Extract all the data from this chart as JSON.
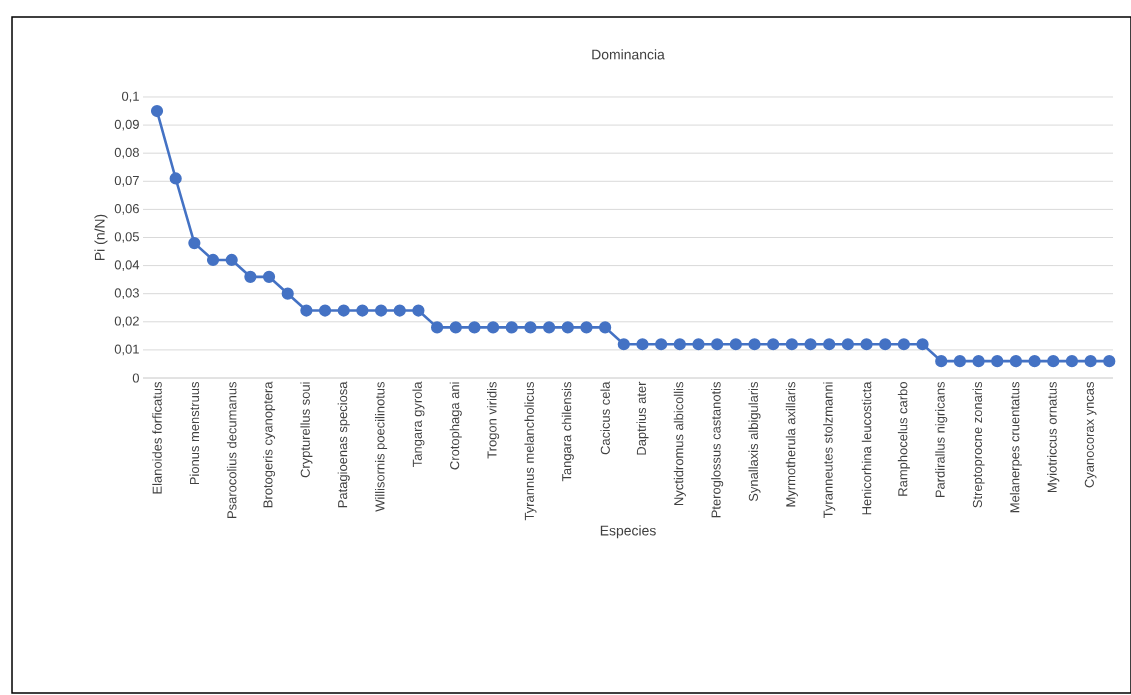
{
  "chart_data": {
    "type": "line",
    "title": "Dominancia",
    "xlabel": "Especies",
    "ylabel": "Pi (n/N)",
    "categories": [
      "Elanoides forficatus",
      null,
      "Pionus menstruus",
      null,
      "Psarocolius decumanus",
      null,
      "Brotogeris cyanoptera",
      null,
      "Crypturellus soui",
      null,
      "Patagioenas speciosa",
      null,
      "Willisornis poecilinotus",
      null,
      "Tangara gyrola",
      null,
      "Crotophaga ani",
      null,
      "Trogon viridis",
      null,
      "Tyrannus melancholicus",
      null,
      "Tangara chilensis",
      null,
      "Cacicus cela",
      null,
      "Daptrius ater",
      null,
      "Nyctidromus albicollis",
      null,
      "Pteroglossus castanotis",
      null,
      "Synallaxis albigularis",
      null,
      "Myrmotherula axillaris",
      null,
      "Tyranneutes stolzmanni",
      null,
      "Henicorhina leucosticta",
      null,
      "Ramphocelus carbo",
      null,
      "Pardirallus nigricans",
      null,
      "Streptoprocne zonaris",
      null,
      "Melanerpes cruentatus",
      null,
      "Myiotriccus ornatus",
      null,
      "Cyanocorax yncas",
      null
    ],
    "series": [
      {
        "color": "#4472c4",
        "values": [
          0.095,
          0.071,
          0.048,
          0.042,
          0.042,
          0.036,
          0.036,
          0.03,
          0.024,
          0.024,
          0.024,
          0.024,
          0.024,
          0.024,
          0.024,
          0.018,
          0.018,
          0.018,
          0.018,
          0.018,
          0.018,
          0.018,
          0.018,
          0.018,
          0.018,
          0.012,
          0.012,
          0.012,
          0.012,
          0.012,
          0.012,
          0.012,
          0.012,
          0.012,
          0.012,
          0.012,
          0.012,
          0.012,
          0.012,
          0.012,
          0.012,
          0.012,
          0.006,
          0.006,
          0.006,
          0.006,
          0.006,
          0.006,
          0.006,
          0.006,
          0.006,
          0.006
        ]
      }
    ],
    "ylim": [
      0,
      0.1
    ],
    "yticks": [
      0,
      {
        "value": 0.01,
        "label": "0,01"
      },
      {
        "value": 0.02,
        "label": "0,02"
      },
      {
        "value": 0.03,
        "label": "0,03"
      },
      {
        "value": 0.04,
        "label": "0,04"
      },
      {
        "value": 0.05,
        "label": "0,05"
      },
      {
        "value": 0.06,
        "label": "0,06"
      },
      {
        "value": 0.07,
        "label": "0,07"
      },
      {
        "value": 0.08,
        "label": "0,08"
      },
      {
        "value": 0.09,
        "label": "0,09"
      },
      {
        "value": 0.1,
        "label": "0,1"
      }
    ],
    "grid": "y",
    "marker": "circle",
    "line_style": "solid"
  }
}
